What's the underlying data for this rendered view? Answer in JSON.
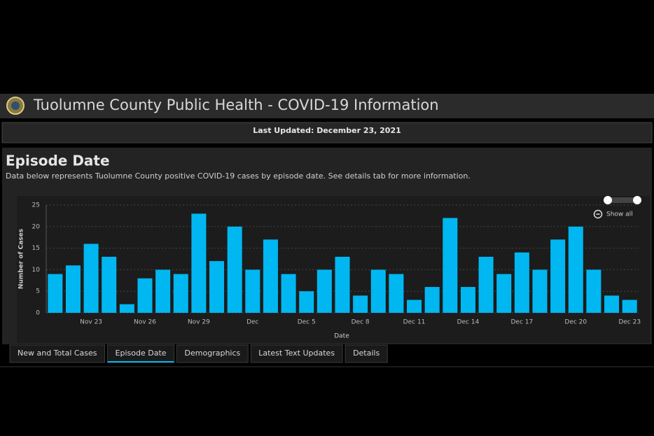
{
  "header": {
    "title": "Tuolumne County Public Health - COVID-19 Information",
    "updated": "Last Updated: December 23, 2021"
  },
  "panel": {
    "title": "Episode Date",
    "subtitle": "Data below represents Tuolumne County positive COVID-19 cases by episode date. See details tab for more information.",
    "show_all": "Show all"
  },
  "chart_data": {
    "type": "bar",
    "x_label": "Date",
    "y_label": "Number of Cases",
    "categories": [
      null,
      null,
      "Nov 23",
      null,
      null,
      "Nov 26",
      null,
      null,
      "Nov 29",
      null,
      null,
      "Dec",
      null,
      null,
      "Dec 5",
      null,
      null,
      "Dec 8",
      null,
      null,
      "Dec 11",
      null,
      null,
      "Dec 14",
      null,
      null,
      "Dec 17",
      null,
      null,
      "Dec 20",
      null,
      null,
      "Dec 23"
    ],
    "values": [
      9,
      11,
      16,
      13,
      2,
      8,
      10,
      9,
      23,
      12,
      20,
      10,
      17,
      9,
      5,
      10,
      13,
      4,
      10,
      9,
      3,
      6,
      22,
      6,
      13,
      9,
      14,
      10,
      17,
      20,
      10,
      4,
      3
    ],
    "color": "#00b7f1",
    "ylim": [
      0,
      25
    ],
    "yticks": [
      0,
      5,
      10,
      15,
      20,
      25
    ],
    "grid": true
  },
  "tabs": {
    "items": [
      "New and Total Cases",
      "Episode Date",
      "Demographics",
      "Latest Text Updates",
      "Details"
    ],
    "active": 1
  }
}
